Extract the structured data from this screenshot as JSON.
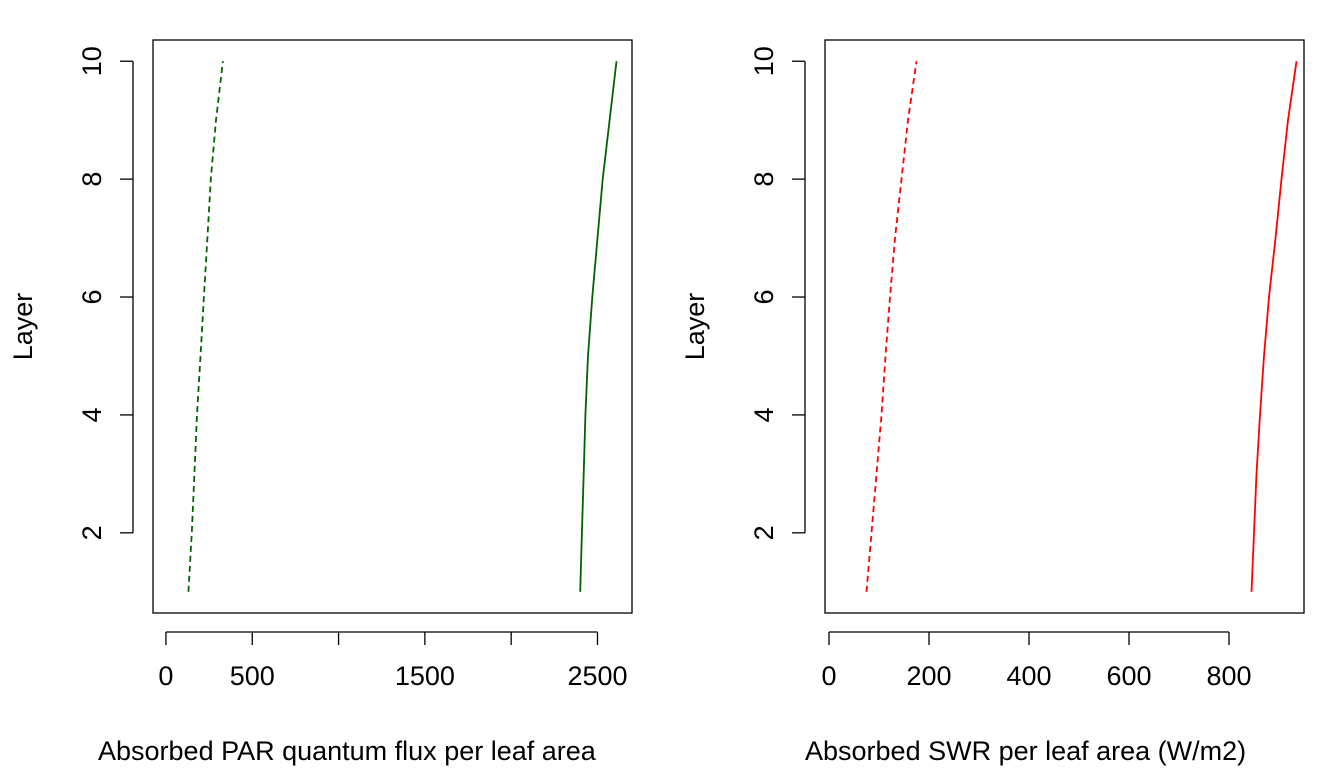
{
  "chart_data": [
    {
      "type": "line",
      "xlabel": "Absorbed PAR quantum flux per leaf area",
      "ylabel": "Layer",
      "xlim": [
        -75,
        2700
      ],
      "ylim": [
        0.64,
        10.36
      ],
      "xticks": [
        0,
        500,
        1000,
        1500,
        2000,
        2500
      ],
      "xtick_labels": [
        "0",
        "500",
        "",
        "1500",
        "",
        "2500"
      ],
      "yticks": [
        2,
        4,
        6,
        8,
        10
      ],
      "ytick_labels": [
        "2",
        "4",
        "6",
        "8",
        "10"
      ],
      "grid": false,
      "series": [
        {
          "style": "dashed",
          "color": "#006400",
          "y": [
            1,
            2,
            3,
            4,
            5,
            6,
            7,
            8,
            9,
            10
          ],
          "x": [
            130,
            150,
            165,
            180,
            200,
            220,
            240,
            260,
            290,
            330
          ]
        },
        {
          "style": "solid",
          "color": "#006400",
          "y": [
            1,
            2,
            3,
            4,
            5,
            6,
            7,
            8,
            9,
            10
          ],
          "x": [
            2400,
            2410,
            2420,
            2430,
            2445,
            2470,
            2500,
            2530,
            2570,
            2610
          ]
        }
      ]
    },
    {
      "type": "line",
      "xlabel": "Absorbed SWR per leaf area (W/m2)",
      "ylabel": "Layer",
      "xlim": [
        -8,
        950
      ],
      "ylim": [
        0.64,
        10.36
      ],
      "xticks": [
        0,
        200,
        400,
        600,
        800
      ],
      "xtick_labels": [
        "0",
        "200",
        "400",
        "600",
        "800"
      ],
      "yticks": [
        2,
        4,
        6,
        8,
        10
      ],
      "ytick_labels": [
        "2",
        "4",
        "6",
        "8",
        "10"
      ],
      "grid": false,
      "series": [
        {
          "style": "dashed",
          "color": "#ff0000",
          "y": [
            1,
            2,
            3,
            4,
            5,
            6,
            7,
            8,
            9,
            10
          ],
          "x": [
            75,
            85,
            95,
            105,
            113,
            122,
            132,
            145,
            158,
            175
          ]
        },
        {
          "style": "solid",
          "color": "#ff0000",
          "y": [
            1,
            2,
            3,
            4,
            5,
            6,
            7,
            8,
            9,
            10
          ],
          "x": [
            845,
            850,
            855,
            862,
            870,
            880,
            893,
            905,
            918,
            935
          ]
        }
      ]
    }
  ]
}
